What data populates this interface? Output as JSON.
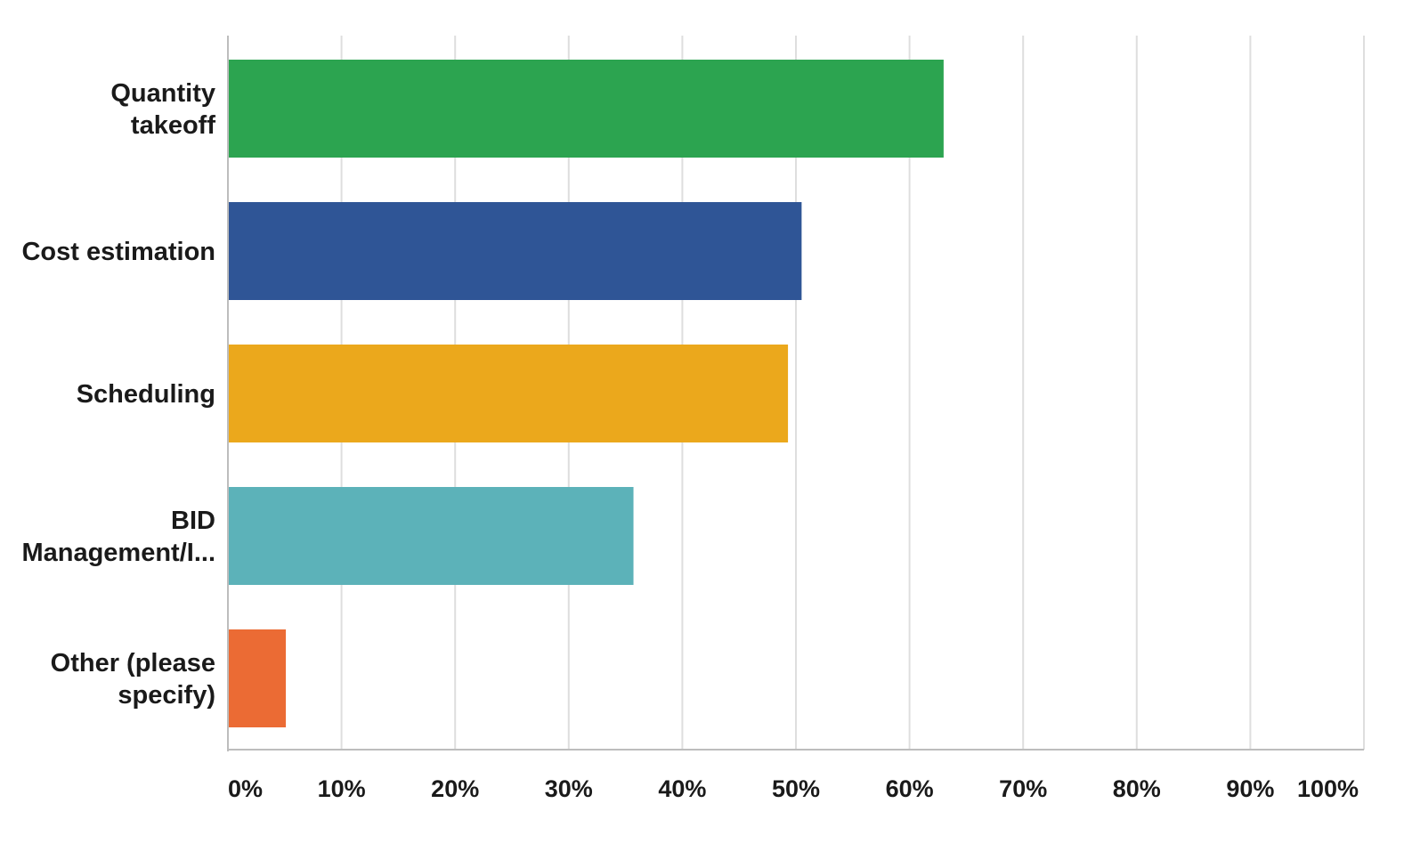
{
  "chart_data": {
    "type": "bar",
    "orientation": "horizontal",
    "categories": [
      [
        "Quantity",
        "takeoff"
      ],
      [
        "Cost estimation"
      ],
      [
        "Scheduling"
      ],
      [
        "BID",
        "Management/I..."
      ],
      [
        "Other (please",
        "specify)"
      ]
    ],
    "values": [
      63,
      50.5,
      49.3,
      35.7,
      5.1
    ],
    "colors": [
      "#2ca450",
      "#2f5596",
      "#eba81c",
      "#5cb2b9",
      "#eb6b34"
    ],
    "xlim": [
      0,
      100
    ],
    "xticks": [
      "0%",
      "10%",
      "20%",
      "30%",
      "40%",
      "50%",
      "60%",
      "70%",
      "80%",
      "90%",
      "100%"
    ],
    "grid": true,
    "legend": "none"
  }
}
